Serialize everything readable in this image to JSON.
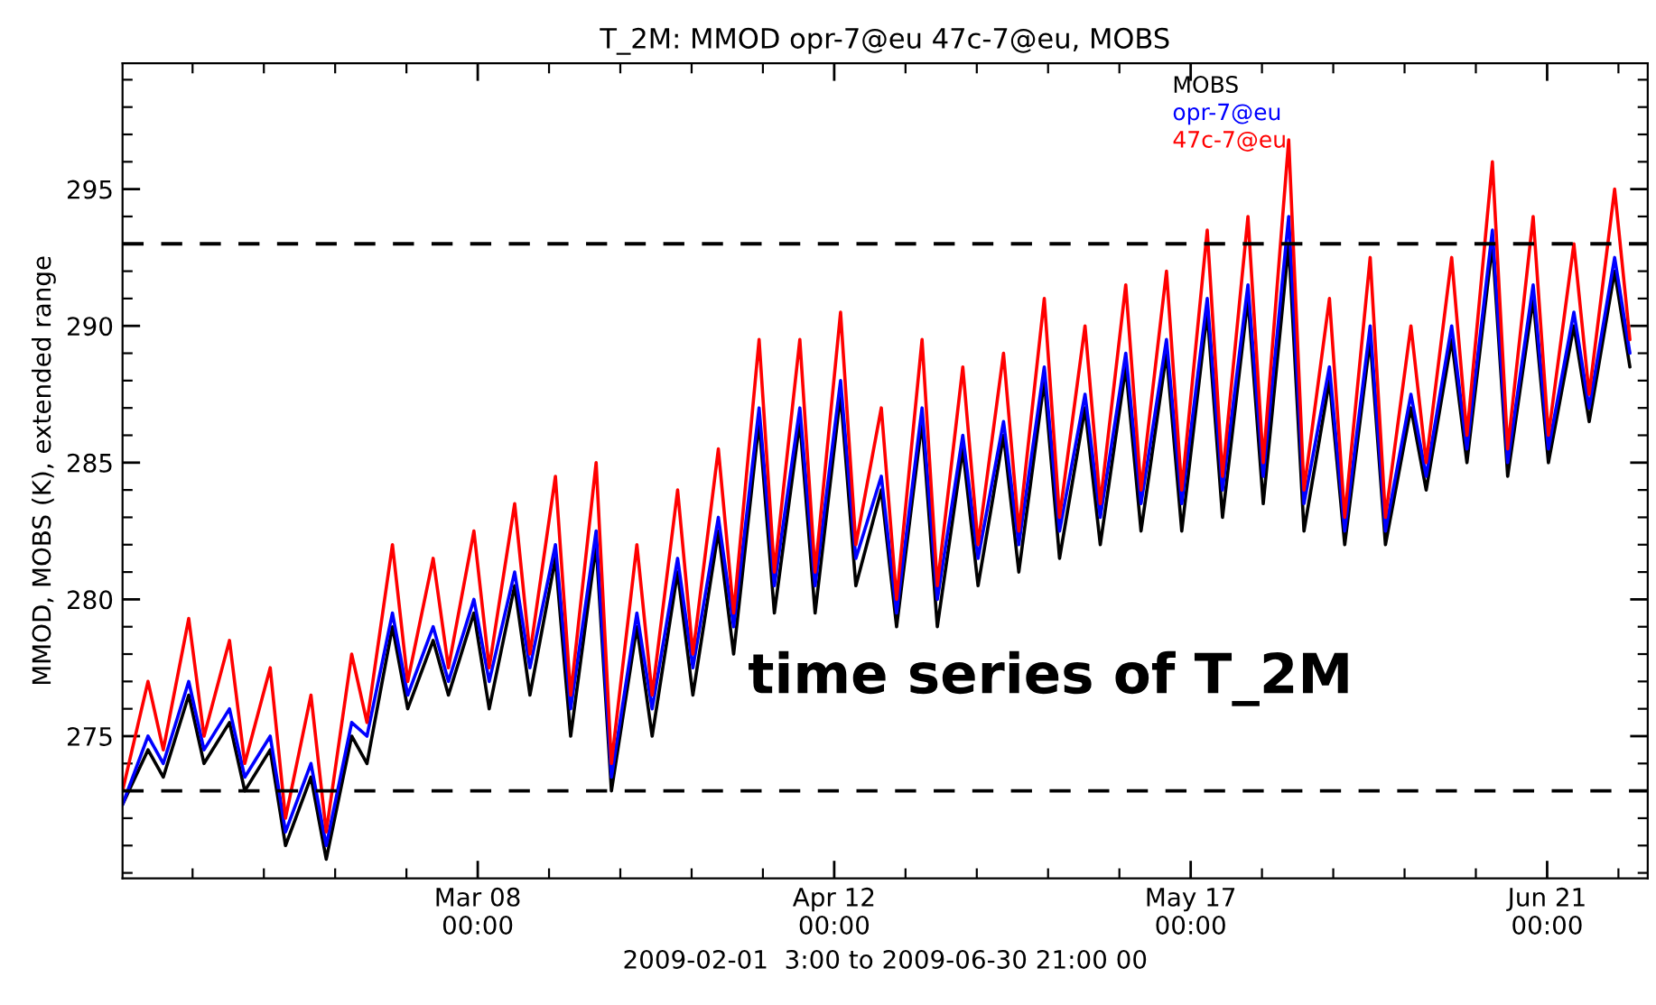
{
  "chart_data": {
    "type": "line",
    "title": "T_2M: MMOD opr-7@eu 47c-7@eu, MOBS",
    "xlabel": "2009-02-01  3:00 to 2009-06-30 21:00 00",
    "ylabel": "MMOD, MOBS (K), extended range",
    "annotations": [
      "time series of T_2M"
    ],
    "x": [
      "2009-02-01T03:00",
      "2009-02-03T15:00",
      "2009-02-05T03:00",
      "2009-02-07T15:00",
      "2009-02-09T03:00",
      "2009-02-11T15:00",
      "2009-02-13T03:00",
      "2009-02-15T15:00",
      "2009-02-17T03:00",
      "2009-02-19T15:00",
      "2009-02-21T03:00",
      "2009-02-23T15:00",
      "2009-02-25T03:00",
      "2009-02-27T15:00",
      "2009-03-01T03:00",
      "2009-03-03T15:00",
      "2009-03-05T03:00",
      "2009-03-07T15:00",
      "2009-03-09T03:00",
      "2009-03-11T15:00",
      "2009-03-13T03:00",
      "2009-03-15T15:00",
      "2009-03-17T03:00",
      "2009-03-19T15:00",
      "2009-03-21T03:00",
      "2009-03-23T15:00",
      "2009-03-25T03:00",
      "2009-03-27T15:00",
      "2009-03-29T03:00",
      "2009-03-31T15:00",
      "2009-04-02T03:00",
      "2009-04-04T15:00",
      "2009-04-06T03:00",
      "2009-04-08T15:00",
      "2009-04-10T03:00",
      "2009-04-12T15:00",
      "2009-04-14T03:00",
      "2009-04-16T15:00",
      "2009-04-18T03:00",
      "2009-04-20T15:00",
      "2009-04-22T03:00",
      "2009-04-24T15:00",
      "2009-04-26T03:00",
      "2009-04-28T15:00",
      "2009-04-30T03:00",
      "2009-05-02T15:00",
      "2009-05-04T03:00",
      "2009-05-06T15:00",
      "2009-05-08T03:00",
      "2009-05-10T15:00",
      "2009-05-12T03:00",
      "2009-05-14T15:00",
      "2009-05-16T03:00",
      "2009-05-18T15:00",
      "2009-05-20T03:00",
      "2009-05-22T15:00",
      "2009-05-24T03:00",
      "2009-05-26T15:00",
      "2009-05-28T03:00",
      "2009-05-30T15:00",
      "2009-06-01T03:00",
      "2009-06-03T15:00",
      "2009-06-05T03:00",
      "2009-06-07T15:00",
      "2009-06-09T03:00",
      "2009-06-11T15:00",
      "2009-06-13T03:00",
      "2009-06-15T15:00",
      "2009-06-17T03:00",
      "2009-06-19T15:00",
      "2009-06-21T03:00",
      "2009-06-23T15:00",
      "2009-06-25T03:00",
      "2009-06-27T15:00",
      "2009-06-29T03:00"
    ],
    "series": [
      {
        "name": "MOBS",
        "color": "#000000",
        "values": [
          272.5,
          274.5,
          273.5,
          276.5,
          274,
          275.5,
          273,
          274.5,
          271,
          273.5,
          270.5,
          275,
          274,
          279,
          276,
          278.5,
          276.5,
          279.5,
          276,
          280.5,
          276.5,
          281.5,
          275,
          282,
          273,
          279,
          275,
          281,
          276.5,
          282.5,
          278,
          286.5,
          279.5,
          286.5,
          279.5,
          287.5,
          280.5,
          284,
          279,
          286.5,
          279,
          285.5,
          280.5,
          286,
          281,
          288,
          281.5,
          287,
          282,
          288.5,
          282.5,
          289,
          282.5,
          290.5,
          283,
          291,
          283.5,
          293,
          282.5,
          288,
          282,
          289.5,
          282,
          287,
          284,
          289.5,
          285,
          293,
          284.5,
          291,
          285,
          290,
          286.5,
          292,
          288.5
        ]
      },
      {
        "name": "opr-7@eu",
        "color": "#0000ff",
        "values": [
          272.5,
          275,
          274,
          277,
          274.5,
          276,
          273.5,
          275,
          271.5,
          274,
          271,
          275.5,
          275,
          279.5,
          276.5,
          279,
          277,
          280,
          277,
          281,
          277.5,
          282,
          276,
          282.5,
          273.5,
          279.5,
          276,
          281.5,
          277.5,
          283,
          279,
          287,
          280.5,
          287,
          280.5,
          288,
          281.5,
          284.5,
          279.5,
          287,
          280,
          286,
          281.5,
          286.5,
          282,
          288.5,
          282.5,
          287.5,
          283,
          289,
          283.5,
          289.5,
          283.5,
          291,
          284,
          291.5,
          284.5,
          294,
          283.5,
          288.5,
          282.5,
          290,
          282.5,
          287.5,
          284.5,
          290,
          285.5,
          293.5,
          285,
          291.5,
          285.5,
          290.5,
          287,
          292.5,
          289
        ]
      },
      {
        "name": "47c-7@eu",
        "color": "#ff0000",
        "values": [
          273,
          277,
          274.5,
          279.3,
          275,
          278.5,
          274,
          277.5,
          272,
          276.5,
          271.5,
          278,
          275.5,
          282,
          277,
          281.5,
          277.5,
          282.5,
          277.5,
          283.5,
          278,
          284.5,
          276.5,
          285,
          274,
          282,
          276.5,
          284,
          278,
          285.5,
          279.5,
          289.5,
          281,
          289.5,
          281,
          290.5,
          282,
          287,
          280,
          289.5,
          280.5,
          288.5,
          282,
          289,
          282.5,
          291,
          283,
          290,
          283.5,
          291.5,
          284,
          292,
          284,
          293.5,
          284.5,
          294,
          285,
          296.8,
          284,
          291,
          283,
          292.5,
          283,
          290,
          285,
          292.5,
          286,
          296,
          285.5,
          294,
          286,
          293,
          287.5,
          295,
          289.5
        ]
      }
    ],
    "xlim": [
      "2009-02-01T03:00",
      "2009-06-30T21:00"
    ],
    "xticks": [
      {
        "value": "2009-03-08T00:00",
        "label": "Mar 08\n00:00"
      },
      {
        "value": "2009-04-12T00:00",
        "label": "Apr 12\n00:00"
      },
      {
        "value": "2009-05-17T00:00",
        "label": "May 17\n00:00"
      },
      {
        "value": "2009-06-21T00:00",
        "label": "Jun 21\n00:00"
      },
      {
        "value": "2009-02-08T00:00",
        "label": null
      },
      {
        "value": "2009-02-15T00:00",
        "label": null
      },
      {
        "value": "2009-02-22T00:00",
        "label": null
      },
      {
        "value": "2009-03-01T00:00",
        "label": null
      },
      {
        "value": "2009-03-15T00:00",
        "label": null
      },
      {
        "value": "2009-03-22T00:00",
        "label": null
      },
      {
        "value": "2009-03-29T00:00",
        "label": null
      },
      {
        "value": "2009-04-05T00:00",
        "label": null
      },
      {
        "value": "2009-04-19T00:00",
        "label": null
      },
      {
        "value": "2009-04-26T00:00",
        "label": null
      },
      {
        "value": "2009-05-03T00:00",
        "label": null
      },
      {
        "value": "2009-05-10T00:00",
        "label": null
      },
      {
        "value": "2009-05-24T00:00",
        "label": null
      },
      {
        "value": "2009-05-31T00:00",
        "label": null
      },
      {
        "value": "2009-06-07T00:00",
        "label": null
      },
      {
        "value": "2009-06-14T00:00",
        "label": null
      },
      {
        "value": "2009-06-28T00:00",
        "label": null
      }
    ],
    "ylim": [
      269.8,
      299.6
    ],
    "yticks": [
      275,
      280,
      285,
      290,
      295,
      {
        "value": 270,
        "label": null
      },
      {
        "value": 271,
        "label": null
      },
      {
        "value": 272,
        "label": null
      },
      {
        "value": 273,
        "label": null
      },
      {
        "value": 274,
        "label": null
      },
      {
        "value": 276,
        "label": null
      },
      {
        "value": 277,
        "label": null
      },
      {
        "value": 278,
        "label": null
      },
      {
        "value": 279,
        "label": null
      },
      {
        "value": 281,
        "label": null
      },
      {
        "value": 282,
        "label": null
      },
      {
        "value": 283,
        "label": null
      },
      {
        "value": 284,
        "label": null
      },
      {
        "value": 286,
        "label": null
      },
      {
        "value": 287,
        "label": null
      },
      {
        "value": 288,
        "label": null
      },
      {
        "value": 289,
        "label": null
      },
      {
        "value": 291,
        "label": null
      },
      {
        "value": 292,
        "label": null
      },
      {
        "value": 293,
        "label": null
      },
      {
        "value": 294,
        "label": null
      },
      {
        "value": 296,
        "label": null
      },
      {
        "value": 297,
        "label": null
      },
      {
        "value": 298,
        "label": null
      },
      {
        "value": 299,
        "label": null
      }
    ],
    "ref_lines": [
      {
        "axis": "y",
        "value": 273,
        "label": null,
        "color": "#000000",
        "line_style": "dashed"
      },
      {
        "axis": "y",
        "value": 293,
        "label": null,
        "color": "#000000",
        "line_style": "dashed"
      }
    ],
    "legend": "top",
    "grid": false
  }
}
